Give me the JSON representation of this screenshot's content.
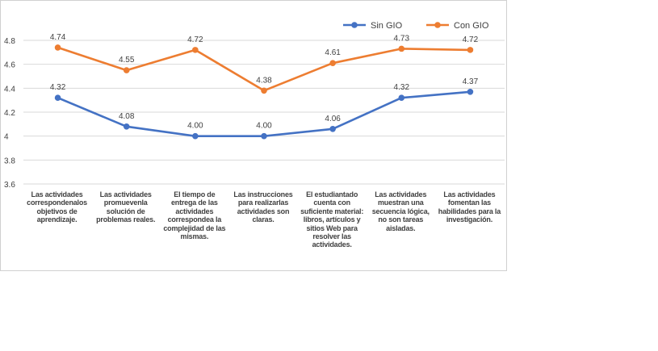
{
  "chart_data": {
    "type": "line",
    "title": "",
    "xlabel": "",
    "ylabel": "",
    "ylim": [
      3.6,
      4.9
    ],
    "yticks": [
      {
        "value": 3.6,
        "label": "3.6"
      },
      {
        "value": 3.8,
        "label": "3.8"
      },
      {
        "value": 4.0,
        "label": "4"
      },
      {
        "value": 4.2,
        "label": "4.2"
      },
      {
        "value": 4.4,
        "label": "4.4"
      },
      {
        "value": 4.6,
        "label": "4.6"
      },
      {
        "value": 4.8,
        "label": "4.8"
      }
    ],
    "grid": true,
    "legend_position": "top-right",
    "categories": [
      [
        "Las actividades",
        "correspondenalos",
        "objetivos  de",
        "aprendizaje."
      ],
      [
        "Las actividades",
        "promuevenla",
        "solución de",
        "problemas reales."
      ],
      [
        "El  tiempo  de",
        "entrega  de  las",
        "actividades",
        "correspondea la",
        "complejidad de las",
        "mismas."
      ],
      [
        "Las instrucciones",
        "para  realizarlas",
        "actividades son",
        "claras."
      ],
      [
        "El estudiantado",
        "cuenta con",
        "suficiente material:",
        "libros, artículos y",
        "sitios Web para",
        "resolver las",
        "actividades."
      ],
      [
        "Las actividades",
        "muestran una",
        "secuencia lógica,",
        "no son tareas",
        "aisladas."
      ],
      [
        "Las actividades",
        "fomentan las",
        "habilidades para la",
        "investigación."
      ]
    ],
    "series": [
      {
        "name": "Sin GIO",
        "color": "#4472c4",
        "values": [
          4.32,
          4.08,
          4.0,
          4.0,
          4.06,
          4.32,
          4.37
        ],
        "labels": [
          "4.32",
          "4.08",
          "4.00",
          "4.00",
          "4.06",
          "4.32",
          "4.37"
        ]
      },
      {
        "name": "Con GIO",
        "color": "#ed7d31",
        "values": [
          4.74,
          4.55,
          4.72,
          4.38,
          4.61,
          4.73,
          4.72
        ],
        "labels": [
          "4.74",
          "4.55",
          "4.72",
          "4.38",
          "4.61",
          "4.73",
          "4.72"
        ]
      }
    ]
  }
}
